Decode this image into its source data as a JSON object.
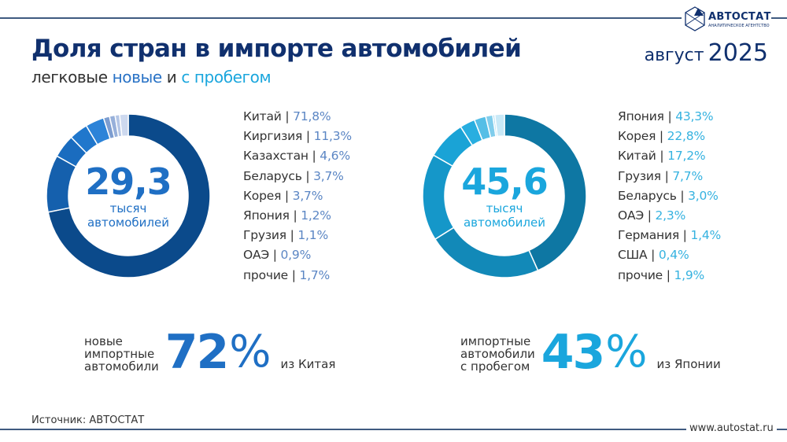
{
  "header": {
    "title": "Доля стран в импорте автомобилей",
    "subtitle_prefix": "легковые",
    "subtitle_new": "новые",
    "subtitle_and": "и",
    "subtitle_used": "с пробегом",
    "month": "август",
    "year": "2025",
    "logo_text": "АВТОСТАТ",
    "logo_subtext": "АНАЛИТИЧЕСКОЕ АГЕНТСТВО"
  },
  "colors": {
    "title": "#10306e",
    "new_accent": "#1f6fc4",
    "used_accent": "#1aa6dd"
  },
  "chart_data": [
    {
      "type": "pie",
      "variant": "donut",
      "center_value": "29,3",
      "center_label_1": "тысяч",
      "center_label_2": "автомобилей",
      "unit": "%",
      "categories": [
        "Китай",
        "Киргизия",
        "Казахстан",
        "Беларусь",
        "Корея",
        "Япония",
        "Грузия",
        "ОАЭ",
        "прочие"
      ],
      "values": [
        71.8,
        11.3,
        4.6,
        3.7,
        3.7,
        1.2,
        1.1,
        0.9,
        1.7
      ],
      "labels": [
        "71,8%",
        "11,3%",
        "4,6%",
        "3,7%",
        "3,7%",
        "1,2%",
        "1,1%",
        "0,9%",
        "1,7%"
      ],
      "colors": [
        "#0b4a8b",
        "#1560ad",
        "#1a6cbf",
        "#2077cc",
        "#2c83d8",
        "#7d9dd0",
        "#97b0da",
        "#b4c6e6",
        "#cdd9ef"
      ],
      "legend_placement": "right"
    },
    {
      "type": "pie",
      "variant": "donut",
      "center_value": "45,6",
      "center_label_1": "тысяч",
      "center_label_2": "автомобилей",
      "unit": "%",
      "categories": [
        "Япония",
        "Корея",
        "Китай",
        "Грузия",
        "Беларусь",
        "ОАЭ",
        "Германия",
        "США",
        "прочие"
      ],
      "values": [
        43.3,
        22.8,
        17.2,
        7.7,
        3.0,
        2.3,
        1.4,
        0.4,
        1.9
      ],
      "labels": [
        "43,3%",
        "22,8%",
        "17,2%",
        "7,7%",
        "3,0%",
        "2,3%",
        "1,4%",
        "0,4%",
        "1,9%"
      ],
      "colors": [
        "#0e77a3",
        "#1289b8",
        "#1597c9",
        "#1aa3d6",
        "#28aee0",
        "#55bee6",
        "#80cdec",
        "#a8dcf2",
        "#c9e9f7"
      ],
      "legend_placement": "right"
    }
  ],
  "summary_new": {
    "line1": "новые",
    "line2": "импортные",
    "line3": "автомобили",
    "value": "72",
    "pct": "%",
    "from": "из Китая"
  },
  "summary_used": {
    "line1": "импортные",
    "line2": "автомобили",
    "line3": "с пробегом",
    "value": "43",
    "pct": "%",
    "from": "из Японии"
  },
  "footer": {
    "source": "Источник: АВТОСТАТ",
    "site": "www.autostat.ru"
  }
}
